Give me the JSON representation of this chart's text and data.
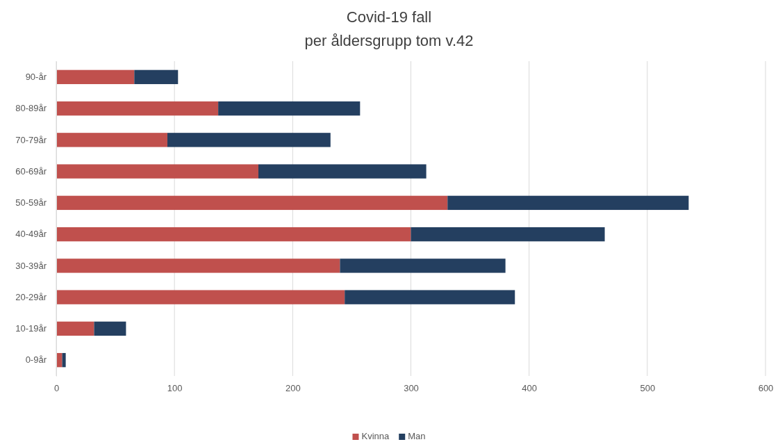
{
  "chart_data": {
    "type": "bar",
    "orientation": "horizontal",
    "stacked": true,
    "title": "Covid-19 fall",
    "subtitle": "per åldersgrupp tom v.42",
    "categories": [
      "90-år",
      "80-89år",
      "70-79år",
      "60-69år",
      "50-59år",
      "40-49år",
      "30-39år",
      "20-29år",
      "10-19år",
      "0-9år"
    ],
    "series": [
      {
        "name": "Kvinna",
        "color": "#c0504d",
        "values": [
          66,
          137,
          94,
          171,
          331,
          300,
          240,
          244,
          32,
          5
        ]
      },
      {
        "name": "Man",
        "color": "#243f60",
        "values": [
          37,
          120,
          138,
          142,
          204,
          164,
          140,
          144,
          27,
          3
        ]
      }
    ],
    "xlim": [
      0,
      600
    ],
    "xticks": [
      0,
      100,
      200,
      300,
      400,
      500,
      600
    ],
    "grid": "x",
    "legend": "bottom"
  }
}
